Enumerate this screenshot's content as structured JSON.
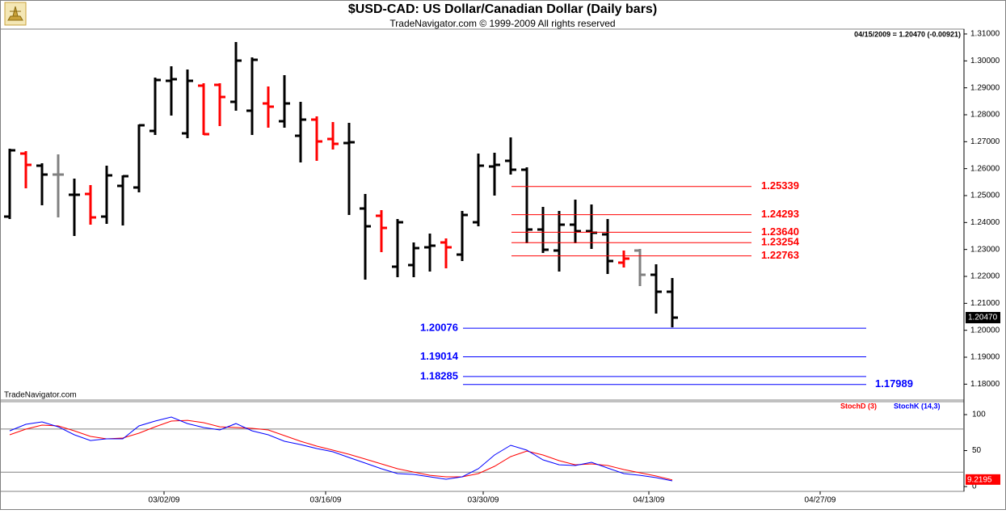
{
  "chart_data": [
    {
      "type": "ohlc",
      "title": "$USD-CAD:  US Dollar/Canadian Dollar  (Daily bars)",
      "subtitle": "TradeNavigator.com © 1999-2009 All rights reserved",
      "annotation": "04/15/2009 = 1.20470 (-0.00921)",
      "watermark": "TradeNavigator.com",
      "open": [
        1.2422,
        1.2656,
        1.2611,
        1.2578,
        1.2503,
        1.2506,
        1.2422,
        1.2536,
        1.253,
        1.274,
        1.2926,
        1.2731,
        1.2908,
        1.2911,
        1.2848,
        1.2815,
        1.2842,
        1.2776,
        1.2722,
        1.2782,
        1.271,
        1.2695,
        1.2452,
        1.2425,
        1.2236,
        1.2242,
        1.2308,
        1.2326,
        1.2281,
        1.2401,
        1.2608,
        1.2629,
        1.2596,
        1.2374,
        1.2296,
        1.2392,
        1.2368,
        1.2356,
        1.2251,
        1.2296,
        1.2206,
        1.2143
      ],
      "high": [
        1.2671,
        1.2662,
        1.2617,
        1.265,
        1.256,
        1.2536,
        1.2608,
        1.2572,
        1.2761,
        1.2935,
        1.2977,
        1.2965,
        1.2914,
        1.2914,
        1.3067,
        1.301,
        1.2902,
        1.2944,
        1.2845,
        1.2791,
        1.277,
        1.2767,
        1.2503,
        1.2443,
        1.241,
        1.2323,
        1.2356,
        1.2338,
        1.244,
        1.2653,
        1.2656,
        1.2713,
        1.2602,
        1.2455,
        1.244,
        1.2482,
        1.2464,
        1.241,
        1.2293,
        1.2299,
        1.2242,
        1.2191
      ],
      "low": [
        1.2416,
        1.253,
        1.2467,
        1.2422,
        1.2353,
        1.2395,
        1.2398,
        1.2392,
        1.2515,
        1.2728,
        1.28,
        1.2716,
        1.2728,
        1.2761,
        1.2818,
        1.2728,
        1.2755,
        1.2755,
        1.2626,
        1.2632,
        1.2674,
        1.2431,
        1.2191,
        1.2293,
        1.22,
        1.22,
        1.2221,
        1.2233,
        1.226,
        1.2389,
        1.2503,
        1.2581,
        1.2326,
        1.229,
        1.2221,
        1.2326,
        1.2305,
        1.2212,
        1.2236,
        1.2167,
        1.2065,
        1.2014
      ],
      "close": [
        1.2668,
        1.2614,
        1.2578,
        1.2578,
        1.2503,
        1.2419,
        1.2575,
        1.2572,
        1.2761,
        1.2929,
        1.2932,
        1.2926,
        1.2728,
        1.2866,
        1.3001,
        1.3004,
        1.283,
        1.2842,
        1.2782,
        1.2701,
        1.2692,
        1.2698,
        1.2386,
        1.238,
        1.2401,
        1.2305,
        1.2314,
        1.2308,
        1.2428,
        1.2611,
        1.2614,
        1.2596,
        1.2374,
        1.2299,
        1.2392,
        1.2368,
        1.2362,
        1.2257,
        1.2266,
        1.2206,
        1.2143,
        1.2047
      ],
      "colors": [
        "#000000",
        "#ff0000",
        "#000000",
        "#808080",
        "#000000",
        "#ff0000",
        "#000000",
        "#000000",
        "#000000",
        "#000000",
        "#000000",
        "#000000",
        "#ff0000",
        "#ff0000",
        "#000000",
        "#000000",
        "#ff0000",
        "#000000",
        "#000000",
        "#ff0000",
        "#ff0000",
        "#000000",
        "#000000",
        "#ff0000",
        "#000000",
        "#000000",
        "#000000",
        "#ff0000",
        "#000000",
        "#000000",
        "#000000",
        "#000000",
        "#000000",
        "#000000",
        "#000000",
        "#000000",
        "#000000",
        "#000000",
        "#ff0000",
        "#808080",
        "#000000",
        "#000000"
      ],
      "xlim": [
        -0.6,
        59.05
      ],
      "ylim": [
        1.1741,
        1.3118
      ],
      "yticks": [
        {
          "value": 1.31,
          "label": "1.31000"
        },
        {
          "value": 1.3,
          "label": "1.30000"
        },
        {
          "value": 1.29,
          "label": "1.29000"
        },
        {
          "value": 1.28,
          "label": "1.28000"
        },
        {
          "value": 1.27,
          "label": "1.27000"
        },
        {
          "value": 1.26,
          "label": "1.26000"
        },
        {
          "value": 1.25,
          "label": "1.25000"
        },
        {
          "value": 1.24,
          "label": "1.24000"
        },
        {
          "value": 1.23,
          "label": "1.23000"
        },
        {
          "value": 1.22,
          "label": "1.22000"
        },
        {
          "value": 1.21,
          "label": "1.21000"
        },
        {
          "value": 1.2,
          "label": "1.20000"
        },
        {
          "value": 1.19,
          "label": "1.19000"
        },
        {
          "value": 1.18,
          "label": "1.18000"
        }
      ],
      "resistance_levels": [
        1.25339,
        1.24293,
        {
          "value": 1.2364,
          "label": "1.23640"
        },
        1.23254,
        1.22763
      ],
      "resistance_color": "#ff0000",
      "support_levels": [
        1.20076,
        1.19014,
        1.18285,
        1.17989
      ],
      "support_color": "#0000ff",
      "last_price": {
        "value": 1.2047,
        "label": "1.20470"
      }
    },
    {
      "type": "line",
      "xlim": [
        -0.6,
        59.05
      ],
      "ylim": [
        -6.7,
        118
      ],
      "yticks": [
        100,
        50,
        0
      ],
      "bands": [
        80,
        20
      ],
      "xticks": [
        {
          "value": 9.55,
          "label": "03/02/09"
        },
        {
          "value": 19.55,
          "label": "03/16/09"
        },
        {
          "value": 29.3,
          "label": "03/30/09"
        },
        {
          "value": 39.55,
          "label": "04/13/09"
        },
        {
          "value": 50.15,
          "label": "04/27/09"
        }
      ],
      "series": [
        {
          "name": "StochD (3)",
          "color": "#ff0000",
          "values": [
            71.9,
            79.8,
            85.4,
            84.3,
            77.5,
            69.7,
            66.3,
            67.4,
            74.2,
            83.1,
            91.0,
            92.1,
            88.8,
            83.1,
            82.0,
            80.9,
            78.7,
            70.8,
            62.9,
            56.2,
            50.6,
            44.9,
            38.2,
            31.5,
            24.7,
            20.2,
            15.7,
            13.5,
            13.5,
            18.0,
            28.1,
            41.6,
            49.4,
            43.8,
            36.0,
            30.3,
            31.5,
            29.2,
            23.6,
            19.1,
            14.6,
            9.2195
          ]
        },
        {
          "name": "StochK (14,3)",
          "color": "#0000ff",
          "values": [
            77.5,
            86.5,
            89.9,
            83.1,
            71.9,
            64.0,
            66.3,
            66.3,
            84.3,
            91.0,
            96.6,
            87.6,
            82.0,
            78.7,
            87.6,
            77.5,
            71.9,
            62.9,
            58.4,
            52.8,
            48.3,
            40.4,
            32.6,
            24.7,
            18.0,
            16.9,
            13.5,
            10.1,
            13.5,
            24.7,
            43.8,
            57.3,
            50.6,
            37.1,
            30.3,
            29.2,
            33.7,
            25.8,
            18.0,
            15.7,
            12.4,
            7.9
          ]
        }
      ]
    }
  ]
}
